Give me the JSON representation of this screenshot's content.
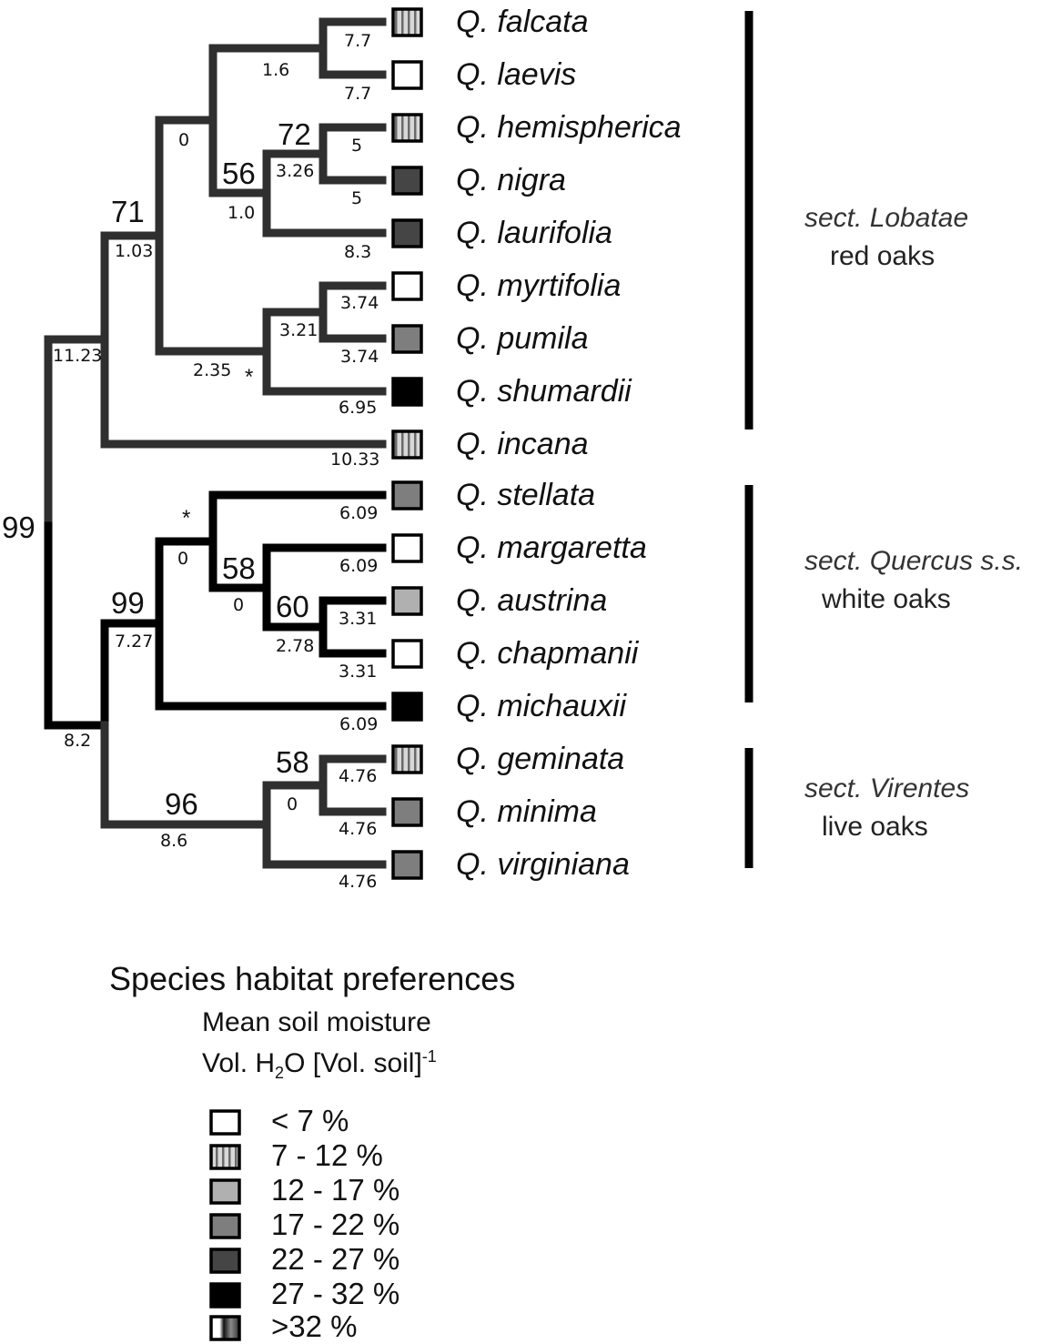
{
  "taxa": [
    {
      "name": "Q. falcata",
      "moisture": "7 - 12 %"
    },
    {
      "name": "Q. laevis",
      "moisture": "< 7 %"
    },
    {
      "name": "Q. hemispherica",
      "moisture": "7 - 12 %"
    },
    {
      "name": "Q. nigra",
      "moisture": "22 - 27 %"
    },
    {
      "name": "Q. laurifolia",
      "moisture": "22 - 27 %"
    },
    {
      "name": "Q. myrtifolia",
      "moisture": "< 7 %"
    },
    {
      "name": "Q. pumila",
      "moisture": "17 - 22 %"
    },
    {
      "name": "Q. shumardii",
      "moisture": "27 - 32 %"
    },
    {
      "name": "Q. incana",
      "moisture": "7 - 12 %"
    },
    {
      "name": "Q. stellata",
      "moisture": "17 - 22 %"
    },
    {
      "name": "Q. margaretta",
      "moisture": "< 7 %"
    },
    {
      "name": "Q. austrina",
      "moisture": "12 - 17 %"
    },
    {
      "name": "Q. chapmanii",
      "moisture": "< 7 %"
    },
    {
      "name": "Q. michauxii",
      "moisture": "27 - 32 %"
    },
    {
      "name": "Q. geminata",
      "moisture": "7 - 12 %"
    },
    {
      "name": "Q. minima",
      "moisture": "17 - 22 %"
    },
    {
      "name": "Q. virginiana",
      "moisture": "17 - 22 %"
    }
  ],
  "tree": {
    "root_support": "99",
    "root_branch": "8.2",
    "branch_lengths": [
      "7.7",
      "7.7",
      "1.6",
      "0",
      "5",
      "5",
      "3.26",
      "8.3",
      "1.0",
      "1.03",
      "3.74",
      "3.74",
      "3.21",
      "6.95",
      "2.35",
      "10.33",
      "11.23",
      "6.09",
      "6.09",
      "3.31",
      "3.31",
      "2.78",
      "0",
      "0",
      "6.09",
      "7.27",
      "4.76",
      "4.76",
      "0",
      "4.76",
      "8.6"
    ],
    "bootstrap": [
      "71",
      "72",
      "56",
      "99",
      "58",
      "60",
      "58",
      "96"
    ],
    "asterisk": "*"
  },
  "sections": [
    {
      "name": "sect. Lobatae",
      "common": "red oaks"
    },
    {
      "name": "sect. Quercus s.s.",
      "common": "white oaks"
    },
    {
      "name": "sect. Virentes",
      "common": "live oaks"
    }
  ],
  "legend": {
    "title": "Species habitat preferences",
    "subtitle": "Mean soil moisture",
    "unit_a": "Vol. H",
    "unit_sub": "2",
    "unit_b": "O  [Vol. soil]",
    "unit_sup": "-1",
    "items": [
      {
        "label": "< 7 %",
        "fill": "#ffffff",
        "pattern": "solid"
      },
      {
        "label": "7 - 12 %",
        "fill": "#d4d4d4",
        "pattern": "striped"
      },
      {
        "label": "12 - 17 %",
        "fill": "#b0b0b0",
        "pattern": "solid"
      },
      {
        "label": "17 - 22 %",
        "fill": "#7e7e7e",
        "pattern": "solid"
      },
      {
        "label": "22 - 27 %",
        "fill": "#454545",
        "pattern": "solid"
      },
      {
        "label": "27 - 32 %",
        "fill": "#000000",
        "pattern": "solid"
      },
      {
        "label": ">32 %",
        "fill": "#ffffff",
        "pattern": "gradient"
      }
    ]
  },
  "colors": {
    "red_oak_branch": "#2f2f2f",
    "white_oak_branch": "#000000",
    "bar": "#000000"
  }
}
